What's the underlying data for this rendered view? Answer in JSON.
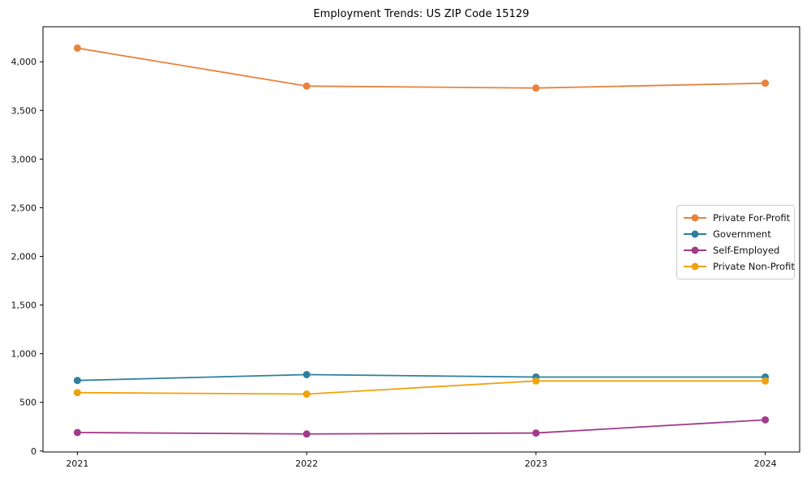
{
  "chart_data": {
    "type": "line",
    "title": "Employment Trends: US ZIP Code 15129",
    "x": [
      2021,
      2022,
      2023,
      2024
    ],
    "x_tick_labels": [
      "2021",
      "2022",
      "2023",
      "2024"
    ],
    "series": [
      {
        "name": "Private For-Profit",
        "color": "#e8823d",
        "values": [
          4140,
          3750,
          3730,
          3780
        ]
      },
      {
        "name": "Government",
        "color": "#2d7f9e",
        "values": [
          725,
          785,
          760,
          760
        ]
      },
      {
        "name": "Self-Employed",
        "color": "#a23a8c",
        "values": [
          190,
          175,
          185,
          320
        ]
      },
      {
        "name": "Private Non-Profit",
        "color": "#f0a10e",
        "values": [
          600,
          585,
          720,
          720
        ]
      }
    ],
    "xlabel": "",
    "ylabel": "",
    "xlim": [
      2020.85,
      2024.15
    ],
    "ylim": [
      -10,
      4360
    ],
    "yticks": [
      0,
      500,
      1000,
      1500,
      2000,
      2500,
      3000,
      3500,
      4000
    ],
    "y_tick_labels": [
      "0",
      "500",
      "1,000",
      "1,500",
      "2,000",
      "2,500",
      "3,000",
      "3,500",
      "4,000"
    ],
    "grid": false,
    "legend_position": "center-right",
    "axis_color": "#000000",
    "background_color": "#ffffff"
  }
}
